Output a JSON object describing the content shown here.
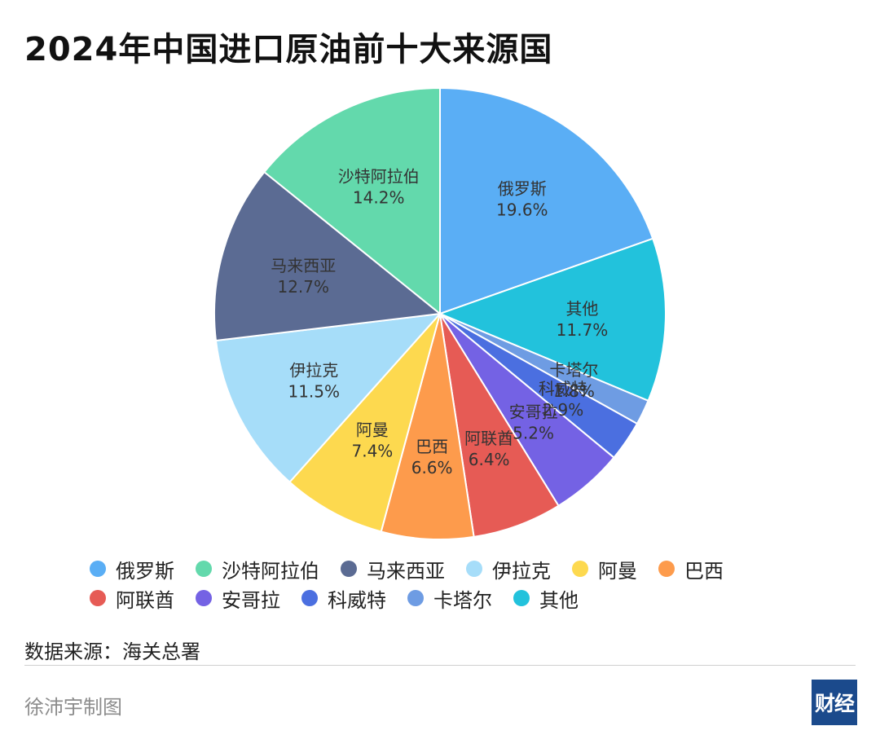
{
  "title": "2024年中国进口原油前十大来源国",
  "chart_data": {
    "type": "pie",
    "title": "2024年中国进口原油前十大来源国",
    "slices": [
      {
        "name": "俄罗斯",
        "value": 19.6,
        "label": "19.6%",
        "color": "#5aaef5"
      },
      {
        "name": "其他",
        "value": 11.7,
        "label": "11.7%",
        "color": "#22c2dc"
      },
      {
        "name": "卡塔尔",
        "value": 1.8,
        "label": "1.8%",
        "color": "#6e9ce3"
      },
      {
        "name": "科威特",
        "value": 2.9,
        "label": "2.9%",
        "color": "#4b6fe0"
      },
      {
        "name": "安哥拉",
        "value": 5.2,
        "label": "5.2%",
        "color": "#7462e4"
      },
      {
        "name": "阿联酋",
        "value": 6.4,
        "label": "6.4%",
        "color": "#e65b55"
      },
      {
        "name": "巴西",
        "value": 6.6,
        "label": "6.6%",
        "color": "#fd9b4c"
      },
      {
        "name": "阿曼",
        "value": 7.4,
        "label": "7.4%",
        "color": "#fdd94f"
      },
      {
        "name": "伊拉克",
        "value": 11.5,
        "label": "11.5%",
        "color": "#a6ddf9"
      },
      {
        "name": "马来西亚",
        "value": 12.7,
        "label": "12.7%",
        "color": "#5b6b93"
      },
      {
        "name": "沙特阿拉伯",
        "value": 14.2,
        "label": "14.2%",
        "color": "#63d9ac"
      }
    ],
    "legend_placement": "bottom"
  },
  "legend": {
    "rows": [
      [
        {
          "label": "俄罗斯",
          "color": "#5aaef5"
        },
        {
          "label": "沙特阿拉伯",
          "color": "#63d9ac"
        },
        {
          "label": "马来西亚",
          "color": "#5b6b93"
        },
        {
          "label": "伊拉克",
          "color": "#a6ddf9"
        },
        {
          "label": "阿曼",
          "color": "#fdd94f"
        },
        {
          "label": "巴西",
          "color": "#fd9b4c"
        }
      ],
      [
        {
          "label": "阿联酋",
          "color": "#e65b55"
        },
        {
          "label": "安哥拉",
          "color": "#7462e4"
        },
        {
          "label": "科威特",
          "color": "#4b6fe0"
        },
        {
          "label": "卡塔尔",
          "color": "#6e9ce3"
        },
        {
          "label": "其他",
          "color": "#22c2dc"
        }
      ]
    ]
  },
  "source": "数据来源：海关总署",
  "credit": "徐沛宇制图",
  "logo": {
    "text": "财经",
    "color": "#1b4a8c"
  }
}
